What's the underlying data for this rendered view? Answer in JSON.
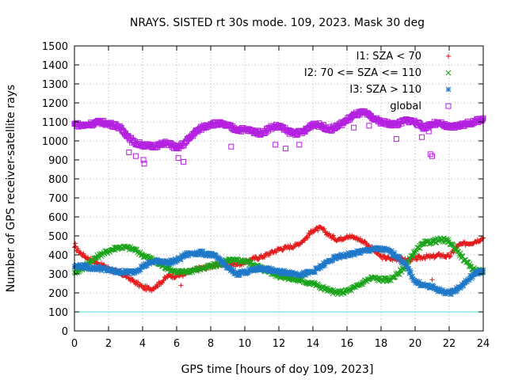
{
  "chart_data": {
    "type": "scatter",
    "title": "NRAYS. SISTED rt 30s mode. 109, 2023. Mask 30 deg",
    "xlabel": "GPS time [hours of doy 109, 2023]",
    "ylabel": "Number of GPS receiver-satellite rays",
    "xlim": [
      0,
      24
    ],
    "ylim": [
      0,
      1500
    ],
    "x_ticks": [
      0,
      2,
      4,
      6,
      8,
      10,
      12,
      14,
      16,
      18,
      20,
      22,
      24
    ],
    "y_ticks": [
      0,
      100,
      200,
      300,
      400,
      500,
      600,
      700,
      800,
      900,
      1000,
      1100,
      1200,
      1300,
      1400,
      1500
    ],
    "grid": true,
    "legend_position": "top-right",
    "threshold_line": {
      "y": 100,
      "color": "#4fd4e6"
    },
    "series": [
      {
        "name": "I1: SZA < 70",
        "marker": "plus",
        "color": "#e41a1c",
        "x": [
          0,
          0.5,
          1,
          1.5,
          2,
          2.5,
          3,
          3.5,
          4,
          4.5,
          5,
          5.5,
          6,
          6.5,
          7,
          7.5,
          8,
          8.5,
          9,
          9.5,
          10,
          10.5,
          11,
          11.5,
          12,
          12.5,
          13,
          13.5,
          14,
          14.5,
          15,
          15.5,
          16,
          16.5,
          17,
          17.5,
          18,
          18.5,
          19,
          19.5,
          20,
          20.5,
          21,
          21.5,
          22,
          22.5,
          23,
          23.5,
          24
        ],
        "y": [
          440,
          400,
          370,
          350,
          330,
          310,
          290,
          260,
          230,
          220,
          250,
          290,
          290,
          300,
          320,
          330,
          340,
          350,
          360,
          350,
          360,
          380,
          390,
          410,
          430,
          440,
          450,
          480,
          530,
          540,
          500,
          480,
          500,
          490,
          470,
          430,
          390,
          380,
          380,
          370,
          380,
          390,
          390,
          400,
          390,
          450,
          460,
          470,
          490
        ]
      },
      {
        "name": "I2: 70 <= SZA <= 110",
        "marker": "cross",
        "color": "#1aa31a",
        "x": [
          0,
          0.5,
          1,
          1.5,
          2,
          2.5,
          3,
          3.5,
          4,
          4.5,
          5,
          5.5,
          6,
          6.5,
          7,
          7.5,
          8,
          8.5,
          9,
          9.5,
          10,
          10.5,
          11,
          11.5,
          12,
          12.5,
          13,
          13.5,
          14,
          14.5,
          15,
          15.5,
          16,
          16.5,
          17,
          17.5,
          18,
          18.5,
          19,
          19.5,
          20,
          20.5,
          21,
          21.5,
          22,
          22.5,
          23,
          23.5,
          24
        ],
        "y": [
          310,
          330,
          370,
          400,
          420,
          440,
          440,
          430,
          400,
          380,
          350,
          330,
          310,
          310,
          320,
          330,
          340,
          350,
          370,
          370,
          370,
          350,
          330,
          310,
          290,
          280,
          270,
          260,
          250,
          230,
          210,
          200,
          210,
          230,
          260,
          280,
          270,
          270,
          300,
          350,
          420,
          460,
          470,
          480,
          470,
          420,
          360,
          320,
          310
        ]
      },
      {
        "name": "I3: SZA > 110",
        "marker": "star",
        "color": "#1f78c8",
        "x": [
          0,
          0.5,
          1,
          1.5,
          2,
          2.5,
          3,
          3.5,
          4,
          4.5,
          5,
          5.5,
          6,
          6.5,
          7,
          7.5,
          8,
          8.5,
          9,
          9.5,
          10,
          10.5,
          11,
          11.5,
          12,
          12.5,
          13,
          13.5,
          14,
          14.5,
          15,
          15.5,
          16,
          16.5,
          17,
          17.5,
          18,
          18.5,
          19,
          19.5,
          20,
          20.5,
          21,
          21.5,
          22,
          22.5,
          23,
          23.5,
          24
        ],
        "y": [
          340,
          340,
          330,
          330,
          320,
          310,
          310,
          310,
          340,
          360,
          370,
          360,
          370,
          400,
          410,
          410,
          400,
          380,
          330,
          300,
          310,
          320,
          330,
          320,
          310,
          310,
          300,
          300,
          310,
          340,
          370,
          390,
          400,
          410,
          420,
          430,
          430,
          420,
          390,
          340,
          260,
          240,
          230,
          210,
          200,
          220,
          260,
          300,
          320
        ]
      },
      {
        "name": "global",
        "marker": "square",
        "color": "#b420e0",
        "x": [
          0,
          0.5,
          1,
          1.5,
          2,
          2.5,
          3,
          3.5,
          4,
          4.5,
          5,
          5.5,
          6,
          6.5,
          7,
          7.5,
          8,
          8.5,
          9,
          9.5,
          10,
          10.5,
          11,
          11.5,
          12,
          12.5,
          13,
          13.5,
          14,
          14.5,
          15,
          15.5,
          16,
          16.5,
          17,
          17.5,
          18,
          18.5,
          19,
          19.5,
          20,
          20.5,
          21,
          21.5,
          22,
          22.5,
          23,
          23.5,
          24
        ],
        "y": [
          1090,
          1080,
          1090,
          1100,
          1090,
          1080,
          1040,
          990,
          980,
          970,
          980,
          990,
          960,
          990,
          1040,
          1070,
          1090,
          1090,
          1080,
          1060,
          1060,
          1050,
          1040,
          1070,
          1080,
          1050,
          1040,
          1050,
          1090,
          1080,
          1060,
          1080,
          1110,
          1140,
          1150,
          1120,
          1100,
          1090,
          1090,
          1110,
          1100,
          1070,
          1090,
          1090,
          1070,
          1080,
          1090,
          1100,
          1120
        ]
      }
    ],
    "outliers": {
      "I1: SZA < 70": {
        "x": [
          0.05,
          6.25,
          21.0
        ],
        "y": [
          460,
          240,
          270
        ]
      },
      "global": {
        "x": [
          3.2,
          3.6,
          4.05,
          4.1,
          6.1,
          6.4,
          9.2,
          11.8,
          12.4,
          13.2,
          16.4,
          17.3,
          18.9,
          20.4,
          20.8,
          20.9,
          21.0
        ],
        "y": [
          940,
          920,
          900,
          880,
          910,
          890,
          970,
          980,
          960,
          980,
          1070,
          1080,
          1010,
          1020,
          1050,
          930,
          920
        ]
      }
    }
  }
}
